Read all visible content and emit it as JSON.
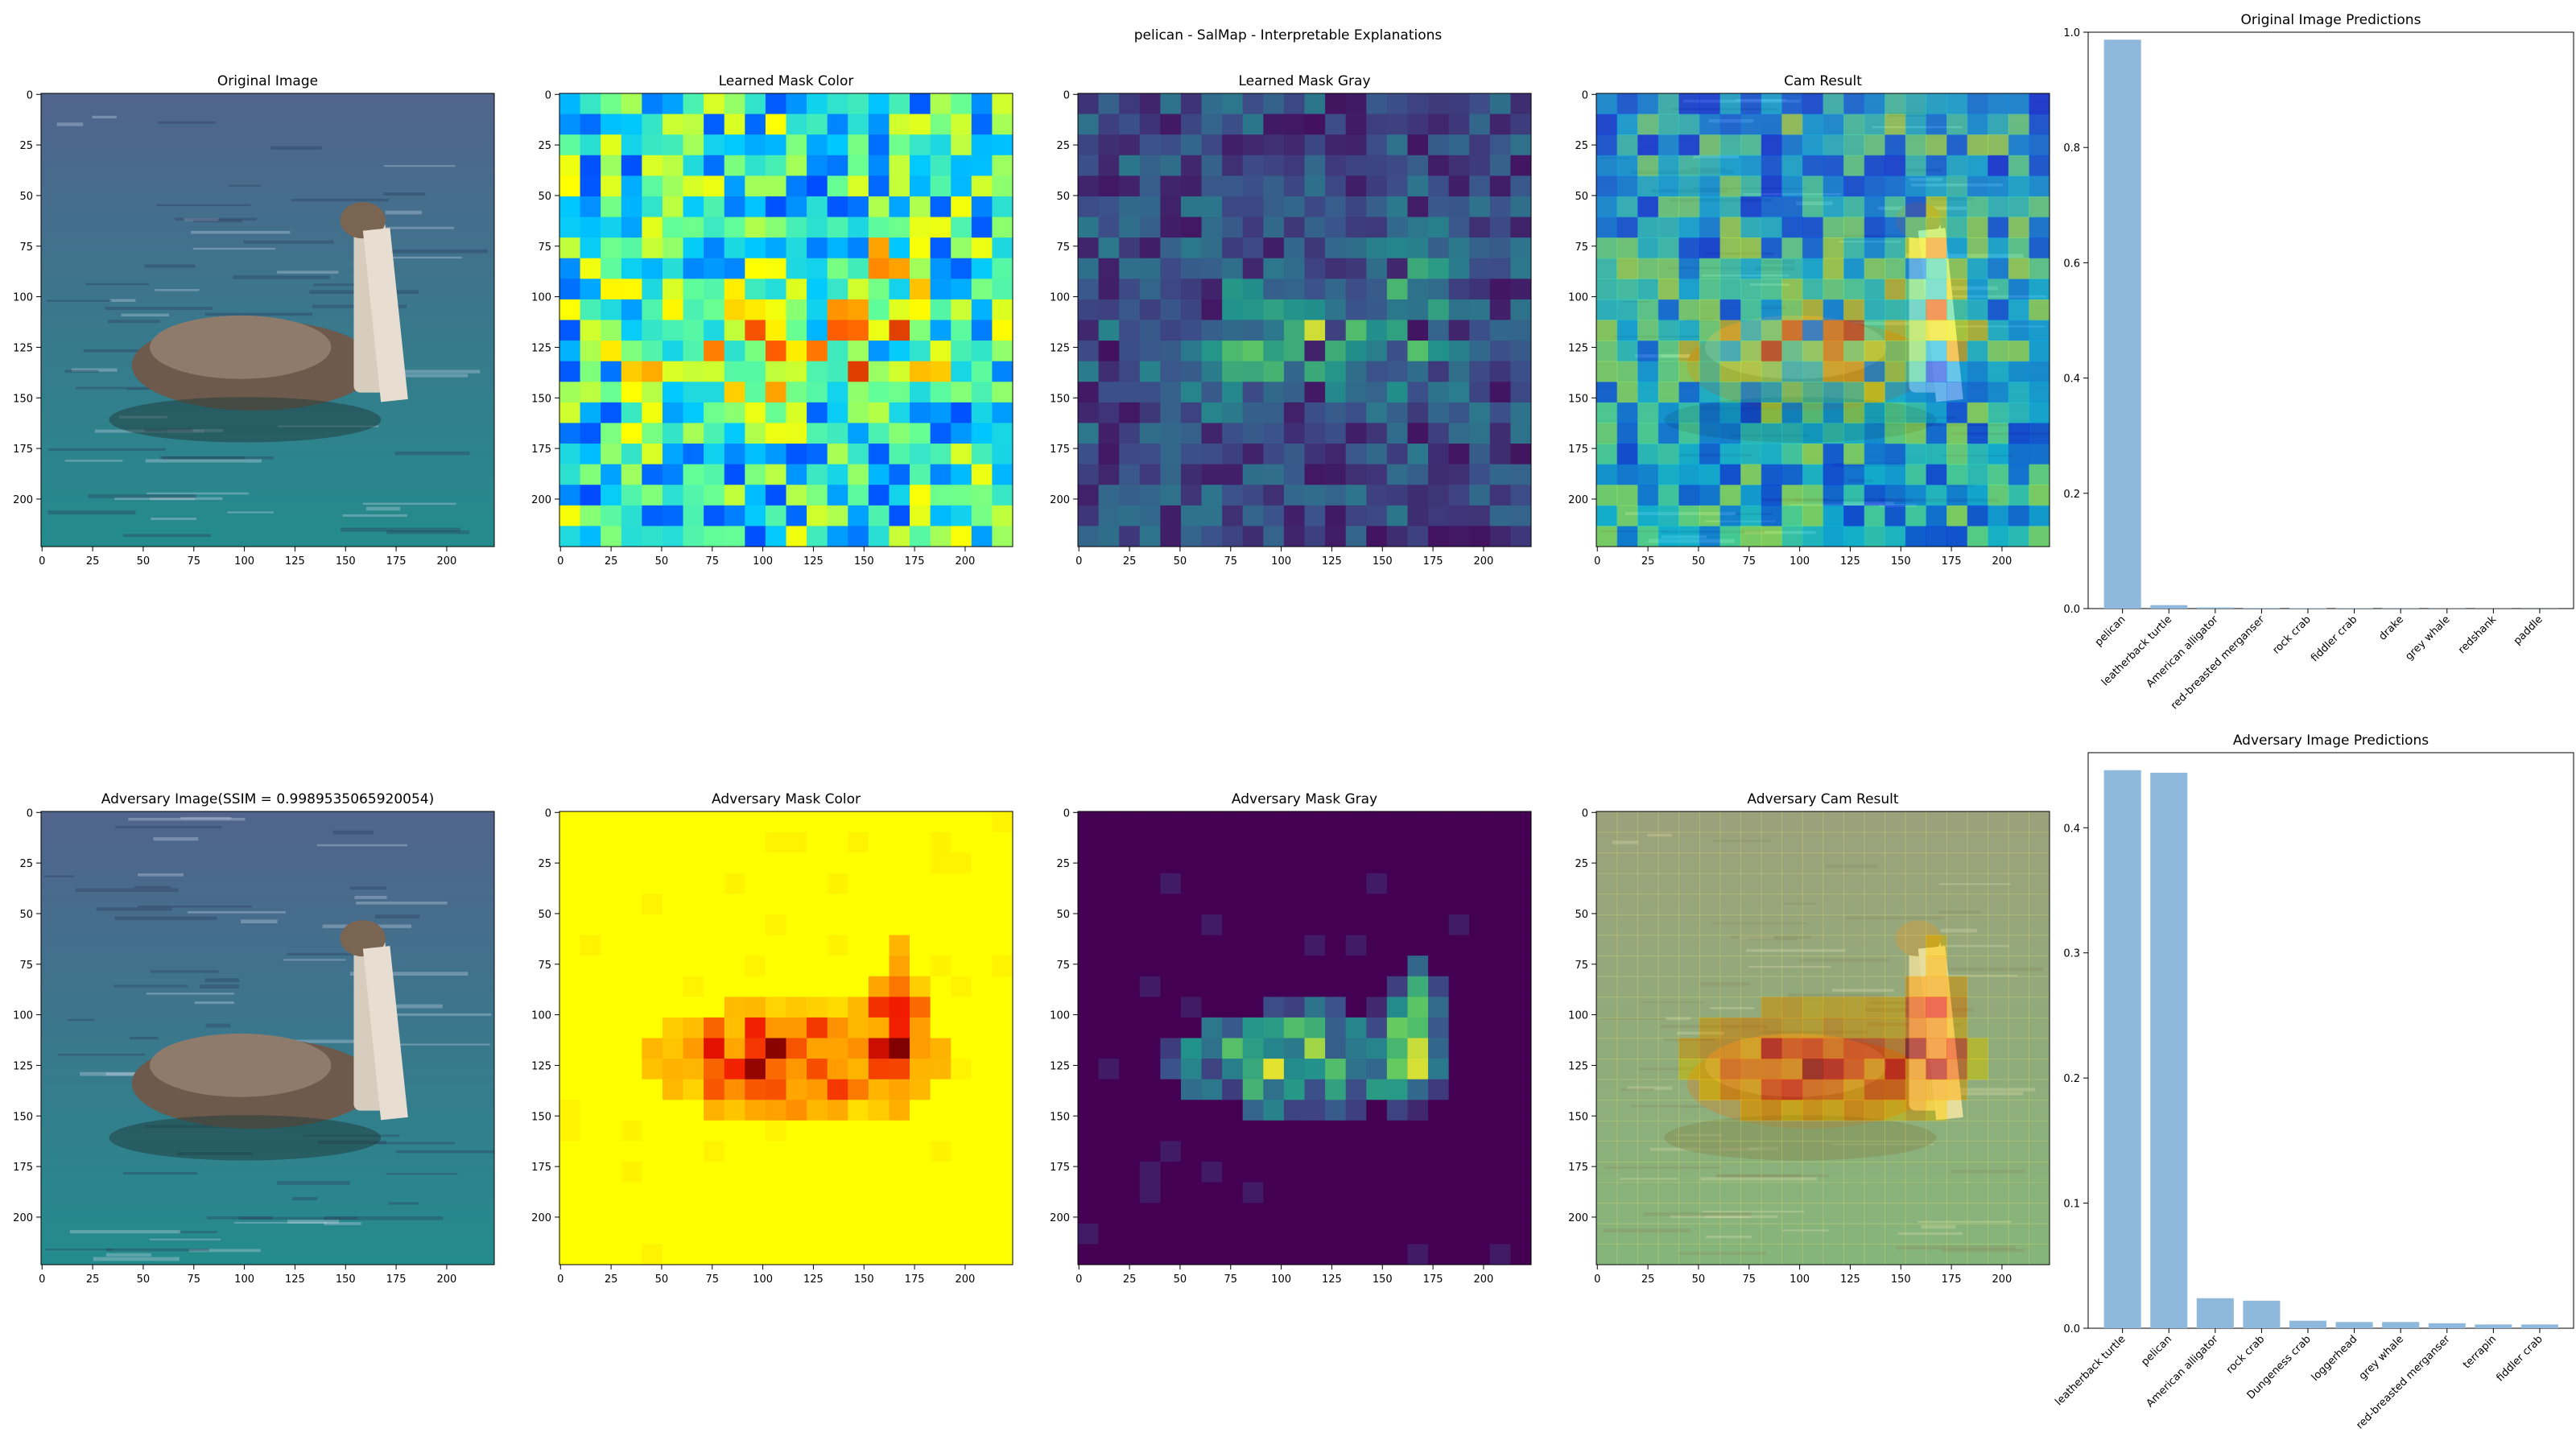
{
  "figure": {
    "suptitle": "pelican - SalMap - Interpretable Explanations"
  },
  "panels": {
    "top": [
      {
        "id": "orig",
        "title": "Original Image",
        "kind": "photo"
      },
      {
        "id": "lmc",
        "title": "Learned Mask Color",
        "kind": "jet-mask"
      },
      {
        "id": "lmg",
        "title": "Learned Mask Gray",
        "kind": "viridis-mask"
      },
      {
        "id": "cam",
        "title": "Cam Result",
        "kind": "cam-overlay"
      }
    ],
    "bottom": [
      {
        "id": "adv",
        "title": "Adversary Image(SSIM = 0.9989535065920054)",
        "kind": "photo"
      },
      {
        "id": "amc",
        "title": "Adversary Mask Color",
        "kind": "hot-mask"
      },
      {
        "id": "amg",
        "title": "Adversary Mask Gray",
        "kind": "viridis-mask"
      },
      {
        "id": "acam",
        "title": "Adversary Cam Result",
        "kind": "cam-overlay"
      }
    ],
    "axis_ticks": {
      "x": [
        "0",
        "25",
        "50",
        "75",
        "100",
        "125",
        "150",
        "175",
        "200"
      ],
      "y": [
        "0",
        "25",
        "50",
        "75",
        "100",
        "125",
        "150",
        "175",
        "200"
      ]
    }
  },
  "chart_data": [
    {
      "type": "bar",
      "title": "Original Image Predictions",
      "categories": [
        "pelican",
        "leatherback turtle",
        "American alligator",
        "red-breasted merganser",
        "rock crab",
        "fiddler crab",
        "drake",
        "grey whale",
        "redshank",
        "paddle"
      ],
      "values": [
        0.987,
        0.006,
        0.002,
        0.001,
        0.0008,
        0.0006,
        0.0005,
        0.0004,
        0.0003,
        0.0002
      ],
      "ylim": [
        0,
        1.0
      ],
      "yticks": [
        "0.0",
        "0.2",
        "0.4",
        "0.6",
        "0.8",
        "1.0"
      ],
      "color": "#8fb9dc"
    },
    {
      "type": "bar",
      "title": "Adversary Image Predictions",
      "categories": [
        "leatherback turtle",
        "pelican",
        "American alligator",
        "rock crab",
        "Dungeness crab",
        "loggerhead",
        "grey whale",
        "red-breasted merganser",
        "terrapin",
        "fiddler crab"
      ],
      "values": [
        0.446,
        0.444,
        0.024,
        0.022,
        0.006,
        0.005,
        0.005,
        0.004,
        0.003,
        0.003
      ],
      "ylim": [
        0,
        0.46
      ],
      "yticks": [
        "0.0",
        "0.1",
        "0.2",
        "0.3",
        "0.4"
      ],
      "color": "#8fb9dc"
    }
  ]
}
